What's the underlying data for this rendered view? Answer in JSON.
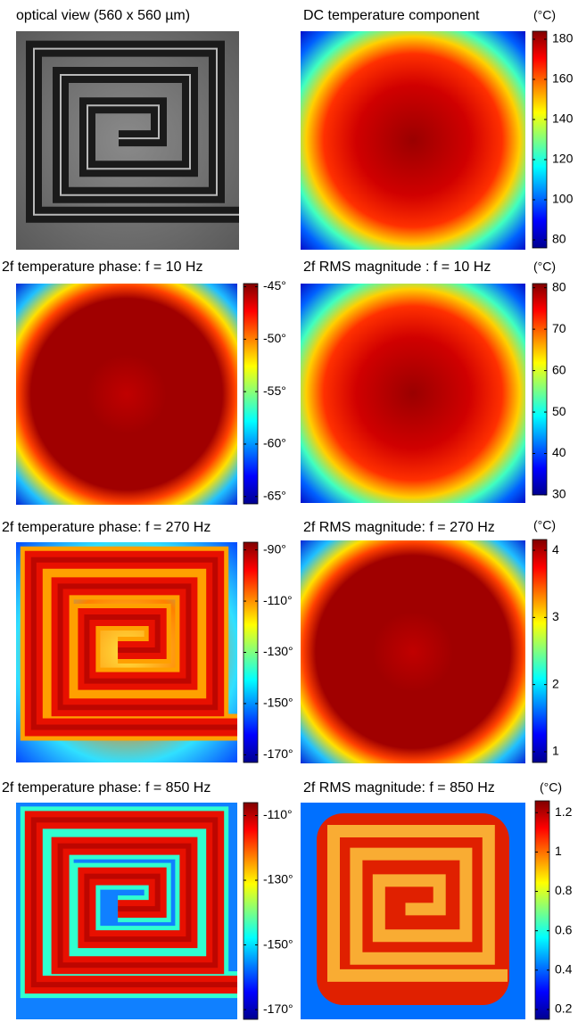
{
  "panels": [
    {
      "title": "optical view (560 x 560 µm)"
    },
    {
      "title": "DC temperature component",
      "unit": "(°C)",
      "colorbar": {
        "lim": [
          76,
          184
        ],
        "ticks": [
          80,
          100,
          120,
          140,
          160,
          180
        ]
      }
    },
    {
      "title": "2f temperature phase: f = 10 Hz",
      "colorbar": {
        "lim": [
          -65.7,
          -44.7
        ],
        "ticks": [
          {
            "value": -45,
            "label": "-45°"
          },
          {
            "value": -50,
            "label": "-50°"
          },
          {
            "value": -55,
            "label": "-55°"
          },
          {
            "value": -60,
            "label": "-60°"
          },
          {
            "value": -65,
            "label": "-65°"
          }
        ]
      }
    },
    {
      "title": "2f RMS magnitude : f = 10 Hz",
      "unit": "(°C)",
      "colorbar": {
        "lim": [
          30,
          81
        ],
        "ticks": [
          30,
          40,
          50,
          60,
          70,
          80
        ]
      }
    },
    {
      "title": "2f temperature phase: f = 270 Hz",
      "colorbar": {
        "lim": [
          -173,
          -87
        ],
        "ticks": [
          {
            "value": -90,
            "label": "-90°"
          },
          {
            "value": -110,
            "label": "-110°"
          },
          {
            "value": -130,
            "label": "-130°"
          },
          {
            "value": -150,
            "label": "-150°"
          },
          {
            "value": -170,
            "label": "-170°"
          }
        ]
      }
    },
    {
      "title": "2f RMS magnitude: f = 270 Hz",
      "unit": "(°C)",
      "colorbar": {
        "lim": [
          0.84,
          4.16
        ],
        "ticks": [
          1,
          2,
          3,
          4
        ]
      }
    },
    {
      "title": "2f temperature phase: f = 850 Hz",
      "colorbar": {
        "lim": [
          -173,
          -106
        ],
        "ticks": [
          {
            "value": -110,
            "label": "-110°"
          },
          {
            "value": -130,
            "label": "-130°"
          },
          {
            "value": -150,
            "label": "-150°"
          },
          {
            "value": -170,
            "label": "-170°"
          }
        ]
      }
    },
    {
      "title": "2f RMS magnitude: f = 850 Hz",
      "unit": "(°C)",
      "colorbar": {
        "lim": [
          0.15,
          1.26
        ],
        "ticks": [
          0.2,
          0.4,
          0.6,
          0.8,
          1,
          1.2
        ]
      }
    }
  ]
}
